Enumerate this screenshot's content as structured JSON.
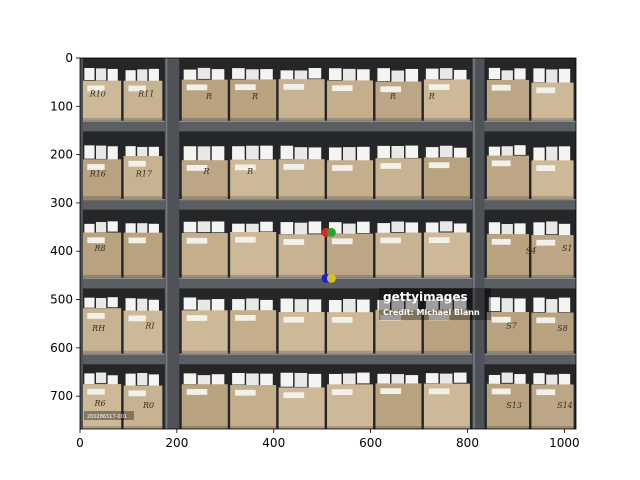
{
  "chart_data": {
    "type": "scatter",
    "title": "",
    "xlabel": "",
    "ylabel": "",
    "image_extent": {
      "width": 1024,
      "height": 768
    },
    "xlim": [
      0,
      1024
    ],
    "ylim": [
      768,
      0
    ],
    "y_inverted": true,
    "x_ticks": [
      0,
      200,
      400,
      600,
      800,
      1000
    ],
    "y_ticks": [
      0,
      100,
      200,
      300,
      400,
      500,
      600,
      700
    ],
    "grid": false,
    "background": "photograph of archive storage shelves filled with cardboard file boxes",
    "series": [
      {
        "color": "#d62728",
        "points": [
          {
            "x": 508,
            "y": 361
          }
        ]
      },
      {
        "color": "#2ca02c",
        "points": [
          {
            "x": 519,
            "y": 361
          }
        ]
      },
      {
        "color": "#1f1fd6",
        "points": [
          {
            "x": 508,
            "y": 456
          }
        ]
      },
      {
        "color": "#d6c21f",
        "points": [
          {
            "x": 519,
            "y": 456
          }
        ]
      }
    ]
  },
  "watermark": {
    "brand": "gettyimages",
    "credit": "Credit: Michael Blann",
    "photo_id": "200286517-001"
  },
  "box_labels": [
    "R10",
    "R11",
    "R",
    "R",
    "R",
    "R",
    "R16",
    "R17",
    "R",
    "R",
    "R8",
    "S4",
    "S1",
    "RH",
    "RI",
    "S7",
    "S8",
    "R6",
    "R0",
    "S13",
    "S14"
  ]
}
